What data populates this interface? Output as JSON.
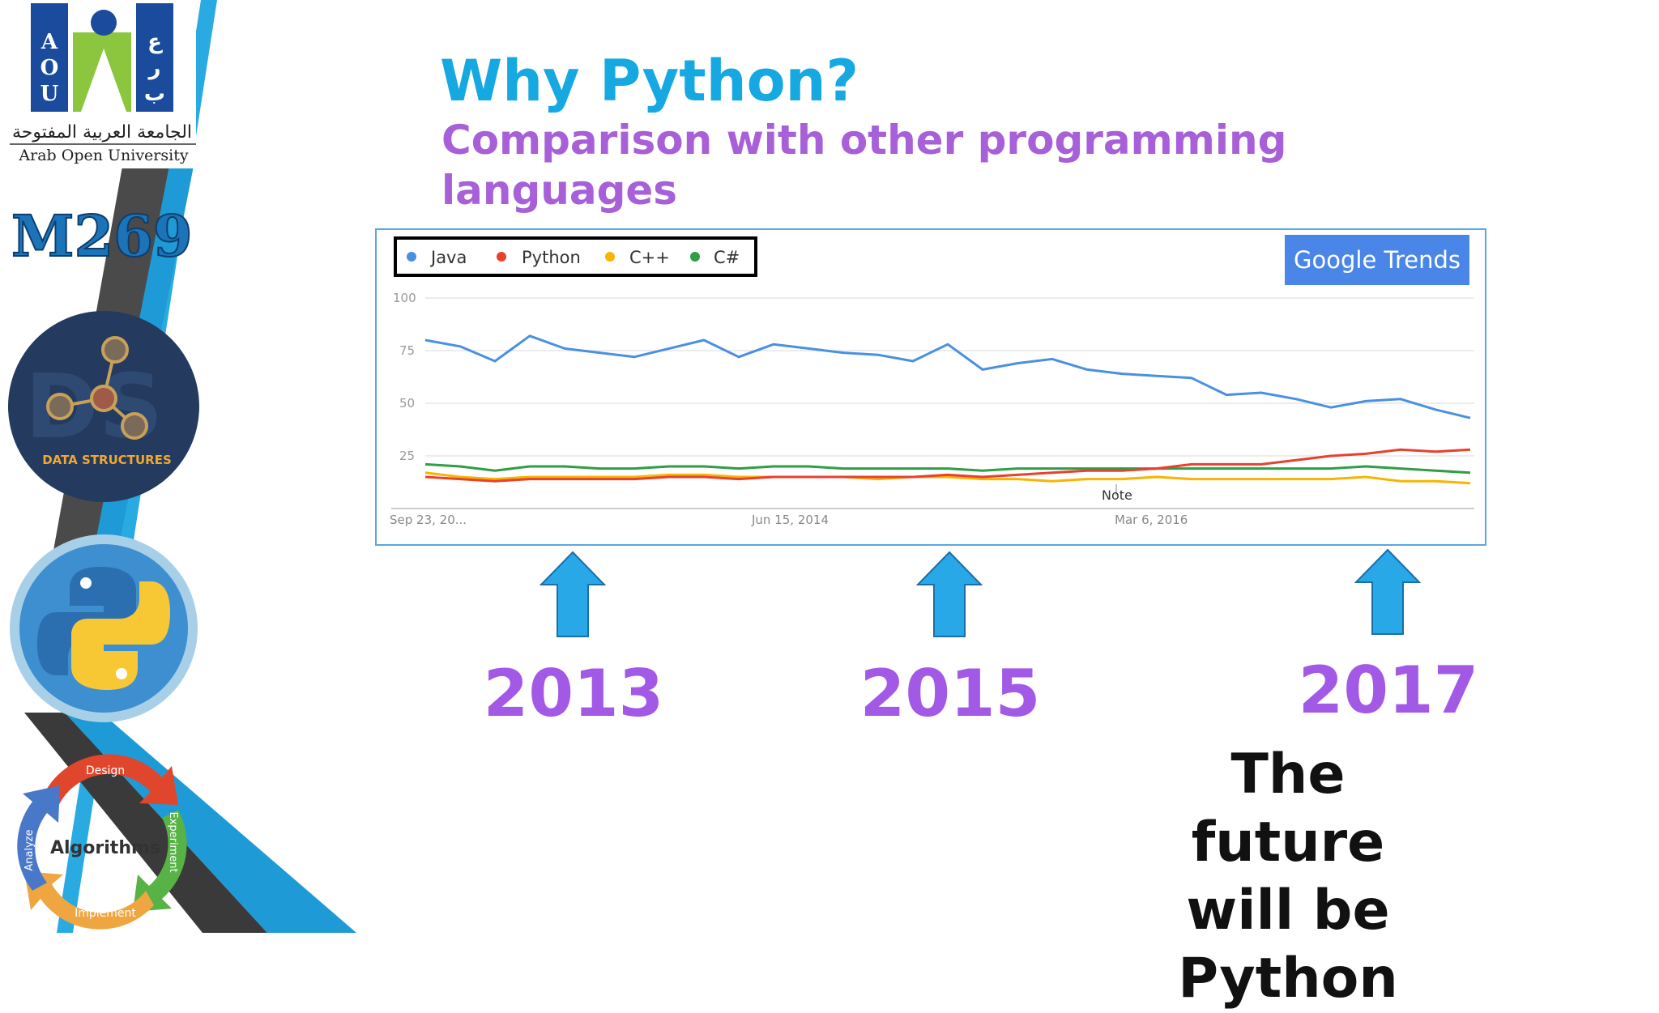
{
  "slide": {
    "title": "Why Python?",
    "subtitle": "Comparison with other programming languages",
    "years": [
      "2013",
      "2015",
      "2017"
    ],
    "conclusion_lines": [
      "The future",
      "will be",
      "Python"
    ]
  },
  "sidebar": {
    "logo_arabic": "الجامعة العربية المفتوحة",
    "logo_english": "Arab Open University",
    "logo_letters_left": [
      "A",
      "O",
      "U"
    ],
    "logo_letters_right": [
      "ع",
      "ر",
      "ب"
    ],
    "course_code": "M269",
    "data_structures_label": "DATA STRUCTURES",
    "ds_watermark": "DS",
    "cycle_center": "Algorithms",
    "cycle_steps": [
      "Design",
      "Experiment",
      "Implement",
      "Analyze"
    ]
  },
  "colors": {
    "title": "#16a8e0",
    "subtitle": "#a760d8",
    "years": "#a259e6",
    "arrow": "#29a8e8",
    "java": "#4a90e2",
    "python": "#e8412e",
    "cpp": "#f7b500",
    "csharp": "#2f9e44",
    "trends_badge": "#4a86e8"
  },
  "chart_data": {
    "type": "line",
    "source_badge": "Google Trends",
    "legend": [
      "Java",
      "Python",
      "C++",
      "C#"
    ],
    "y_ticks": [
      100,
      75,
      50,
      25
    ],
    "x_tick_labels": [
      "Sep 23, 20...",
      "Jun 15, 2014",
      "Mar 6, 2016"
    ],
    "annotation": "Note",
    "ylim": [
      0,
      100
    ],
    "x": [
      "2012-09",
      "2012-11",
      "2013-01",
      "2013-03",
      "2013-05",
      "2013-07",
      "2013-09",
      "2013-11",
      "2014-01",
      "2014-03",
      "2014-05",
      "2014-07",
      "2014-09",
      "2014-11",
      "2015-01",
      "2015-03",
      "2015-05",
      "2015-07",
      "2015-09",
      "2015-11",
      "2016-01",
      "2016-03",
      "2016-05",
      "2016-07",
      "2016-09",
      "2016-11",
      "2017-01",
      "2017-03",
      "2017-05",
      "2017-07",
      "2017-09"
    ],
    "series": [
      {
        "name": "Java",
        "values": [
          80,
          77,
          70,
          82,
          76,
          74,
          72,
          76,
          80,
          72,
          78,
          76,
          74,
          73,
          70,
          78,
          66,
          69,
          71,
          66,
          64,
          63,
          62,
          54,
          55,
          52,
          48,
          51,
          52,
          47,
          43
        ]
      },
      {
        "name": "Python",
        "values": [
          15,
          14,
          13,
          14,
          14,
          14,
          14,
          15,
          15,
          14,
          15,
          15,
          15,
          15,
          15,
          16,
          15,
          16,
          17,
          18,
          18,
          19,
          21,
          21,
          21,
          23,
          25,
          26,
          28,
          27,
          28
        ]
      },
      {
        "name": "C++",
        "values": [
          17,
          15,
          14,
          15,
          15,
          15,
          15,
          16,
          16,
          15,
          15,
          15,
          15,
          14,
          15,
          15,
          14,
          14,
          13,
          14,
          14,
          15,
          14,
          14,
          14,
          14,
          14,
          15,
          13,
          13,
          12
        ]
      },
      {
        "name": "C#",
        "values": [
          21,
          20,
          18,
          20,
          20,
          19,
          19,
          20,
          20,
          19,
          20,
          20,
          19,
          19,
          19,
          19,
          18,
          19,
          19,
          19,
          19,
          19,
          19,
          19,
          19,
          19,
          19,
          20,
          19,
          18,
          17
        ]
      }
    ]
  }
}
